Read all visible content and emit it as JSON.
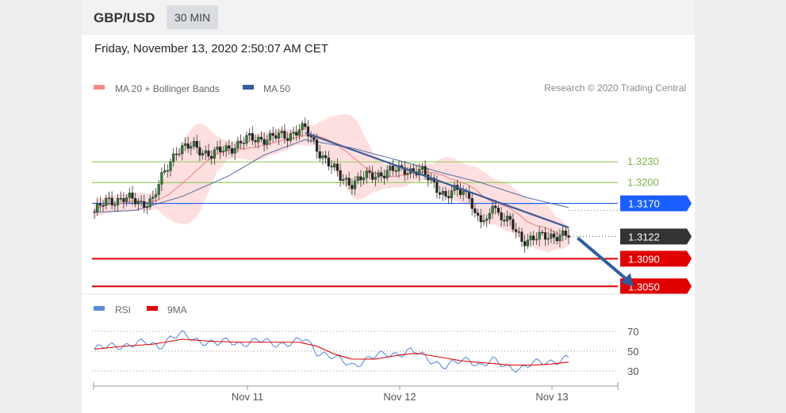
{
  "header": {
    "pair": "GBP/USD",
    "timeframe": "30 MIN"
  },
  "datetime": "Friday, November 13, 2020 2:50:07 AM CET",
  "credit": "Research © 2020 Trading Central",
  "colors": {
    "ma20": "#f28c8c",
    "band": "#fcd4d4",
    "ma50": "#3a5a99",
    "resistance": "#9ccc65",
    "pivot": "#1a5eff",
    "support": "#e00000",
    "current": "#333333",
    "rsi": "#5b8dd9",
    "rsi_ma": "#e00000",
    "arrow": "#2f5d9c"
  },
  "chart_data": [
    {
      "type": "candlestick",
      "title": "",
      "legend": [
        {
          "name": "MA 20 + Bollinger Bands",
          "color": "#f28c8c"
        },
        {
          "name": "MA 50",
          "color": "#3a5a99"
        }
      ],
      "legend_position": "top-left",
      "ylim": [
        1.304,
        1.3315
      ],
      "x_ticks": [
        "Nov 11",
        "Nov 12",
        "Nov 13"
      ],
      "price_path": [
        [
          0,
          1.3158
        ],
        [
          4,
          1.3172
        ],
        [
          10,
          1.3178
        ],
        [
          16,
          1.317
        ],
        [
          20,
          1.3176
        ],
        [
          24,
          1.3215
        ],
        [
          28,
          1.3248
        ],
        [
          34,
          1.3252
        ],
        [
          40,
          1.324
        ],
        [
          46,
          1.325
        ],
        [
          52,
          1.3262
        ],
        [
          60,
          1.3265
        ],
        [
          66,
          1.3268
        ],
        [
          70,
          1.3278
        ],
        [
          72,
          1.3276
        ],
        [
          76,
          1.325
        ],
        [
          80,
          1.3228
        ],
        [
          84,
          1.3207
        ],
        [
          88,
          1.32
        ],
        [
          94,
          1.321
        ],
        [
          100,
          1.3215
        ],
        [
          106,
          1.322
        ],
        [
          112,
          1.3214
        ],
        [
          116,
          1.32
        ],
        [
          120,
          1.3178
        ],
        [
          124,
          1.319
        ],
        [
          128,
          1.3185
        ],
        [
          130,
          1.315
        ],
        [
          134,
          1.314
        ],
        [
          136,
          1.3175
        ],
        [
          138,
          1.3155
        ],
        [
          142,
          1.314
        ],
        [
          146,
          1.3118
        ],
        [
          152,
          1.312
        ],
        [
          158,
          1.3125
        ],
        [
          162,
          1.3122
        ]
      ],
      "ma50_path": [
        [
          0,
          1.3157
        ],
        [
          14,
          1.316
        ],
        [
          30,
          1.318
        ],
        [
          46,
          1.321
        ],
        [
          58,
          1.324
        ],
        [
          72,
          1.3262
        ],
        [
          88,
          1.325
        ],
        [
          104,
          1.3232
        ],
        [
          118,
          1.3215
        ],
        [
          132,
          1.32
        ],
        [
          148,
          1.3178
        ],
        [
          162,
          1.3164
        ]
      ],
      "trendline": {
        "from": [
          72,
          1.3272
        ],
        "to": [
          162,
          1.3135
        ]
      },
      "projection": {
        "from": [
          164,
          1.312
        ],
        "to": [
          176,
          1.3052
        ]
      },
      "levels": [
        {
          "label": "1.3230",
          "value": 1.323,
          "kind": "resistance"
        },
        {
          "label": "1.3200",
          "value": 1.32,
          "kind": "resistance"
        },
        {
          "label": "1.3170",
          "value": 1.317,
          "kind": "pivot"
        },
        {
          "label": "1.3122",
          "value": 1.3122,
          "kind": "current"
        },
        {
          "label": "1.3090",
          "value": 1.309,
          "kind": "support"
        },
        {
          "label": "1.3050",
          "value": 1.305,
          "kind": "support"
        }
      ]
    },
    {
      "type": "line",
      "legend": [
        {
          "name": "RSI",
          "color": "#5b8dd9"
        },
        {
          "name": "9MA",
          "color": "#e00000"
        }
      ],
      "ylim": [
        22,
        78
      ],
      "y_ticks": [
        "70",
        "50",
        "30"
      ],
      "rsi_path": [
        [
          0,
          52
        ],
        [
          6,
          55
        ],
        [
          12,
          57
        ],
        [
          18,
          58
        ],
        [
          22,
          55
        ],
        [
          26,
          64
        ],
        [
          30,
          66
        ],
        [
          34,
          62
        ],
        [
          38,
          60
        ],
        [
          42,
          57
        ],
        [
          46,
          60
        ],
        [
          50,
          58
        ],
        [
          56,
          60
        ],
        [
          62,
          58
        ],
        [
          68,
          58
        ],
        [
          72,
          62
        ],
        [
          76,
          50
        ],
        [
          80,
          46
        ],
        [
          84,
          40
        ],
        [
          88,
          36
        ],
        [
          94,
          43
        ],
        [
          100,
          47
        ],
        [
          104,
          48
        ],
        [
          108,
          50
        ],
        [
          112,
          45
        ],
        [
          116,
          40
        ],
        [
          120,
          35
        ],
        [
          124,
          38
        ],
        [
          128,
          42
        ],
        [
          132,
          36
        ],
        [
          136,
          40
        ],
        [
          140,
          35
        ],
        [
          146,
          33
        ],
        [
          150,
          37
        ],
        [
          156,
          40
        ],
        [
          162,
          43
        ]
      ],
      "rsi_ma_path": [
        [
          0,
          52
        ],
        [
          10,
          55
        ],
        [
          20,
          57
        ],
        [
          30,
          62
        ],
        [
          40,
          60
        ],
        [
          50,
          59
        ],
        [
          60,
          59
        ],
        [
          70,
          59
        ],
        [
          76,
          55
        ],
        [
          82,
          47
        ],
        [
          88,
          42
        ],
        [
          96,
          42
        ],
        [
          104,
          46
        ],
        [
          110,
          48
        ],
        [
          118,
          44
        ],
        [
          126,
          40
        ],
        [
          134,
          38
        ],
        [
          142,
          36
        ],
        [
          150,
          36
        ],
        [
          156,
          37
        ],
        [
          162,
          39
        ]
      ]
    }
  ]
}
